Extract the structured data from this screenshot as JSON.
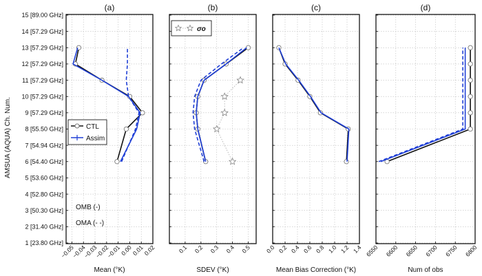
{
  "chart_data": {
    "type": "line",
    "ylabel": "AMSUA (AQUA) Ch. Num.",
    "y_tick_labels": [
      "1 [23.80 GHz]",
      "2 [31.40 GHz]",
      "3 [50.30 GHz]",
      "4 [52.80 GHz]",
      "5 [53.60 GHz]",
      "6 [54.40 GHz]",
      "7 [54.94 GHz]",
      "8 [55.50 GHz]",
      "9 [57.29 GHz]",
      "10 [57.29 GHz]",
      "11 [57.29 GHz]",
      "12 [57.29 GHz]",
      "13 [57.29 GHz]",
      "14 [57.29 GHz]",
      "15 [89.00 GHz]"
    ],
    "ylim": [
      1,
      15
    ],
    "colors": {
      "ctl": "#111111",
      "assim": "#1f3fd6",
      "sigma": "#aaaaaa"
    },
    "panels": [
      {
        "title": "(a)",
        "xlabel": "Mean (°K)",
        "xlim": [
          -0.055,
          0.02
        ],
        "xticks": [
          -0.05,
          -0.04,
          -0.03,
          -0.02,
          -0.01,
          0.0,
          0.01,
          0.02
        ],
        "xtick_labels": [
          "−0.05",
          "−0.04",
          "−0.03",
          "−0.02",
          "−0.01",
          "0.00",
          "0.01",
          "0.02"
        ],
        "legend": {
          "entries": [
            "CTL",
            "Assim"
          ],
          "placement": "center-left"
        },
        "annotations": [
          "OMB (-)",
          "OMA (- -)"
        ],
        "series": [
          {
            "name": "CTL",
            "style": "solid",
            "color_key": "ctl",
            "x": [
              -0.011,
              -0.003,
              0.011,
              0.0,
              -0.024,
              -0.047,
              -0.044
            ],
            "y": [
              6,
              8,
              9,
              10,
              11,
              12,
              13
            ]
          },
          {
            "name": "Assim",
            "style": "solid",
            "color_key": "assim",
            "x": [
              -0.008,
              0.006,
              0.009,
              -0.001,
              -0.024,
              -0.049,
              -0.045
            ],
            "y": [
              6,
              8,
              9,
              10,
              11,
              12,
              13
            ]
          },
          {
            "style": "dashed",
            "color_key": "assim",
            "x": [
              -0.007,
              0.005,
              0.008,
              -0.001,
              -0.003,
              -0.002,
              -0.002
            ],
            "y": [
              6,
              8,
              9,
              10,
              11,
              12,
              13
            ]
          }
        ]
      },
      {
        "title": "(b)",
        "xlabel": "SDEV (°K)",
        "xlim": [
          0.0,
          0.55
        ],
        "xticks": [
          0.1,
          0.2,
          0.3,
          0.4,
          0.5
        ],
        "xtick_labels": [
          "0.1",
          "0.2",
          "0.3",
          "0.4",
          "0.5"
        ],
        "legend": {
          "entries": [
            "σo"
          ],
          "placement": "top-left"
        },
        "series": [
          {
            "style": "solid",
            "color_key": "ctl",
            "x": [
              0.23,
              0.18,
              0.17,
              0.18,
              0.22,
              0.36,
              0.5
            ],
            "y": [
              6,
              8,
              9,
              10,
              11,
              12,
              13
            ]
          },
          {
            "style": "solid",
            "color_key": "assim",
            "x": [
              0.23,
              0.18,
              0.17,
              0.18,
              0.22,
              0.36,
              0.49
            ],
            "y": [
              6,
              8,
              9,
              10,
              11,
              12,
              13
            ]
          },
          {
            "style": "dashed",
            "color_key": "assim",
            "x": [
              0.22,
              0.16,
              0.15,
              0.16,
              0.2,
              0.33,
              0.47
            ],
            "y": [
              6,
              8,
              9,
              10,
              11,
              12,
              13
            ]
          },
          {
            "name": "σo",
            "style": "dotted",
            "color_key": "sigma",
            "marker": "star",
            "x": [
              0.4,
              0.3,
              0.35,
              0.35,
              0.45
            ],
            "y": [
              6,
              8,
              9,
              10,
              11
            ]
          }
        ]
      },
      {
        "title": "(c)",
        "xlabel": "Mean Bias Correction (°K)",
        "xlim": [
          0.0,
          1.4
        ],
        "xticks": [
          0.0,
          0.2,
          0.4,
          0.6,
          0.8,
          1.0,
          1.2,
          1.4
        ],
        "xtick_labels": [
          "0.0",
          "0.2",
          "0.4",
          "0.6",
          "0.8",
          "1.0",
          "1.2",
          "1.4"
        ],
        "series": [
          {
            "style": "solid",
            "color_key": "ctl",
            "x": [
              1.19,
              1.22,
              0.77,
              0.6,
              0.41,
              0.2,
              0.1
            ],
            "y": [
              6,
              8,
              9,
              10,
              11,
              12,
              13
            ]
          },
          {
            "style": "solid",
            "color_key": "assim",
            "x": [
              1.2,
              1.23,
              0.78,
              0.61,
              0.42,
              0.21,
              0.1
            ],
            "y": [
              6,
              8,
              9,
              10,
              11,
              12,
              13
            ]
          }
        ]
      },
      {
        "title": "(d)",
        "xlabel": "Num of obs",
        "xlim": [
          6550,
          6800
        ],
        "xticks": [
          6550,
          6600,
          6650,
          6700,
          6750,
          6800
        ],
        "xtick_labels": [
          "6550",
          "6600",
          "6650",
          "6700",
          "6750",
          "6800"
        ],
        "series": [
          {
            "style": "solid",
            "color_key": "ctl",
            "x": [
              6578,
              6788,
              6788,
              6788,
              6788,
              6788,
              6788
            ],
            "y": [
              6,
              8,
              9,
              10,
              11,
              12,
              13
            ]
          },
          {
            "style": "solid",
            "color_key": "assim",
            "x": [
              6562,
              6775,
              6775,
              6775,
              6775,
              6775,
              6775
            ],
            "y": [
              6,
              8,
              9,
              10,
              11,
              12,
              13
            ]
          },
          {
            "style": "dashed",
            "color_key": "assim",
            "x": [
              6557,
              6769,
              6769,
              6769,
              6769,
              6769,
              6769
            ],
            "y": [
              6,
              8,
              9,
              10,
              11,
              12,
              13
            ]
          }
        ]
      }
    ]
  }
}
